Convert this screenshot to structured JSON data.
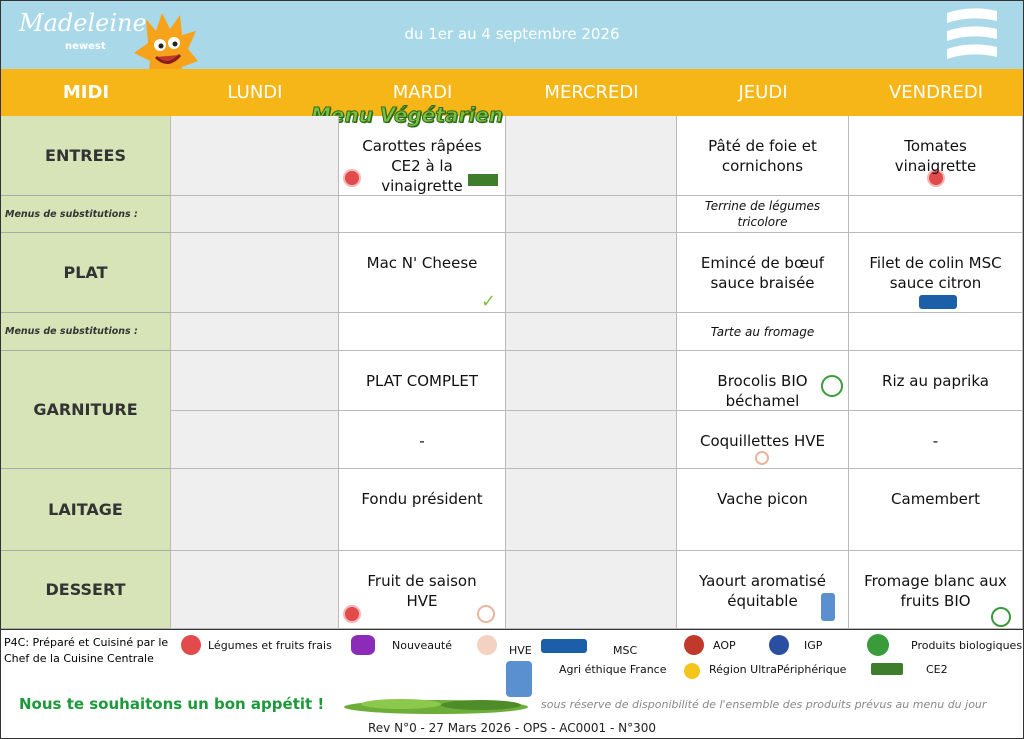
{
  "header": {
    "brand": "Madeleine",
    "brand_sub": "newest",
    "date_range": "du 1er au 4 septembre 2026"
  },
  "columns": [
    "MIDI",
    "LUNDI",
    "MARDI",
    "MERCREDI",
    "JEUDI",
    "VENDREDI"
  ],
  "banner": "Menu Végétarien",
  "table": {
    "rows": [
      {
        "label": "ENTREES",
        "cells": [
          null,
          "Carottes râpées CE2 à la vinaigrette",
          null,
          "Pâté de foie et cornichons",
          "Tomates vinaigrette"
        ]
      },
      {
        "label": "Menus de substitutions :",
        "cells": [
          null,
          null,
          null,
          "Terrine de légumes tricolore",
          null
        ]
      },
      {
        "label": "PLAT",
        "cells": [
          null,
          "Mac N' Cheese",
          null,
          "Emincé de bœuf sauce braisée",
          "Filet de colin MSC sauce citron"
        ]
      },
      {
        "label": "Menus de substitutions :",
        "cells": [
          null,
          null,
          null,
          "Tarte au fromage",
          null
        ]
      },
      {
        "label": "GARNITURE",
        "cells": [
          null,
          "PLAT COMPLET",
          null,
          "Brocolis BIO béchamel",
          "Riz au paprika"
        ]
      },
      {
        "label": null,
        "cells": [
          null,
          "-",
          null,
          "Coquillettes HVE",
          "-"
        ]
      },
      {
        "label": "LAITAGE",
        "cells": [
          null,
          "Fondu président",
          null,
          "Vache picon",
          "Camembert"
        ]
      },
      {
        "label": "DESSERT",
        "cells": [
          null,
          "Fruit de saison HVE",
          null,
          "Yaourt aromatisé équitable",
          "Fromage blanc aux fruits BIO"
        ]
      }
    ]
  },
  "legend": [
    "Légumes et fruits frais",
    "Nouveauté",
    "HVE",
    "MSC",
    "AOP",
    "IGP",
    "Produits biologiques",
    "Agri éthique France",
    "Région UltraPériphérique",
    "CE2"
  ],
  "footer": {
    "p4c": "P4C:  Préparé et  Cuisiné par le Chef de la Cuisine Centrale",
    "greeting": "Nous te souhaitons un bon appétit !",
    "disclaimer": "sous réserve de disponibilité de l'ensemble des produits prévus au menu du jour",
    "revision": "Rev N°0 - 27 Mars 2026 - OPS - AC0001 - N°300"
  }
}
